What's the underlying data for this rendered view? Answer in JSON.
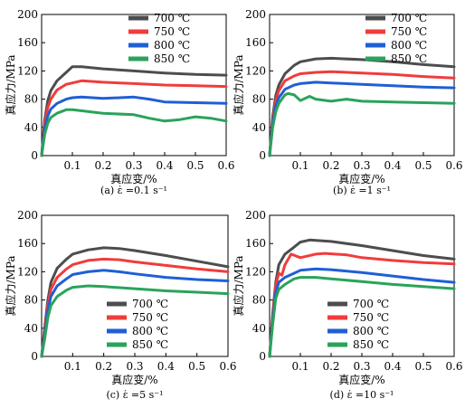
{
  "chart_data": [
    {
      "type": "line",
      "caption": "(a) ε̇ =0.1 s⁻¹",
      "xlabel": "真应变/%",
      "ylabel": "真应力/MPa",
      "xlim": [
        0,
        0.6
      ],
      "ylim": [
        0,
        200
      ],
      "x_ticks": [
        "0.1",
        "0.2",
        "0.3",
        "0.4",
        "0.5",
        "0.6"
      ],
      "y_ticks": [
        "0",
        "40",
        "80",
        "120",
        "160",
        "200"
      ],
      "legend_position": "top-right",
      "series": [
        {
          "name": "700 ℃",
          "color": "#4d4d4d",
          "x": [
            0,
            0.01,
            0.02,
            0.03,
            0.05,
            0.08,
            0.1,
            0.13,
            0.2,
            0.3,
            0.4,
            0.5,
            0.6
          ],
          "y": [
            0,
            50,
            78,
            92,
            106,
            118,
            126,
            126,
            123,
            120,
            117,
            115,
            114
          ]
        },
        {
          "name": "750 ℃",
          "color": "#f03c3c",
          "x": [
            0,
            0.01,
            0.02,
            0.03,
            0.05,
            0.08,
            0.1,
            0.13,
            0.2,
            0.3,
            0.4,
            0.5,
            0.6
          ],
          "y": [
            0,
            44,
            68,
            80,
            93,
            101,
            103,
            106,
            104,
            102,
            100,
            99,
            98
          ]
        },
        {
          "name": "800 ℃",
          "color": "#1f5fd6",
          "x": [
            0,
            0.01,
            0.02,
            0.03,
            0.05,
            0.08,
            0.1,
            0.13,
            0.2,
            0.3,
            0.35,
            0.4,
            0.5,
            0.6
          ],
          "y": [
            0,
            38,
            56,
            66,
            74,
            80,
            82,
            83,
            81,
            83,
            80,
            76,
            75,
            74
          ]
        },
        {
          "name": "850 ℃",
          "color": "#2aa35a",
          "x": [
            0,
            0.01,
            0.02,
            0.03,
            0.05,
            0.08,
            0.1,
            0.2,
            0.3,
            0.35,
            0.4,
            0.45,
            0.5,
            0.55,
            0.6
          ],
          "y": [
            0,
            30,
            46,
            54,
            60,
            65,
            65,
            60,
            58,
            53,
            49,
            51,
            55,
            53,
            49
          ]
        }
      ]
    },
    {
      "type": "line",
      "caption": "(b) ε̇ =1 s⁻¹",
      "xlabel": "真应变/%",
      "ylabel": "真应力/MPa",
      "xlim": [
        0,
        0.6
      ],
      "ylim": [
        0,
        200
      ],
      "x_ticks": [
        "0.1",
        "0.2",
        "0.3",
        "0.4",
        "0.5",
        "0.6"
      ],
      "y_ticks": [
        "0",
        "40",
        "80",
        "120",
        "160",
        "200"
      ],
      "legend_position": "top-right",
      "series": [
        {
          "name": "700 ℃",
          "color": "#4d4d4d",
          "x": [
            0,
            0.01,
            0.02,
            0.03,
            0.05,
            0.08,
            0.1,
            0.15,
            0.2,
            0.3,
            0.4,
            0.5,
            0.6
          ],
          "y": [
            0,
            55,
            85,
            100,
            116,
            128,
            133,
            137,
            138,
            136,
            133,
            129,
            126
          ]
        },
        {
          "name": "750 ℃",
          "color": "#f03c3c",
          "x": [
            0,
            0.01,
            0.02,
            0.03,
            0.05,
            0.08,
            0.1,
            0.15,
            0.2,
            0.3,
            0.4,
            0.5,
            0.6
          ],
          "y": [
            0,
            50,
            78,
            92,
            106,
            113,
            116,
            118,
            119,
            117,
            115,
            112,
            110
          ]
        },
        {
          "name": "800 ℃",
          "color": "#1f5fd6",
          "x": [
            0,
            0.01,
            0.02,
            0.03,
            0.05,
            0.08,
            0.1,
            0.15,
            0.2,
            0.3,
            0.4,
            0.5,
            0.6
          ],
          "y": [
            0,
            46,
            70,
            82,
            94,
            100,
            102,
            104,
            103,
            101,
            99,
            97,
            96
          ]
        },
        {
          "name": "850 ℃",
          "color": "#2aa35a",
          "x": [
            0,
            0.01,
            0.02,
            0.03,
            0.05,
            0.06,
            0.08,
            0.1,
            0.13,
            0.15,
            0.2,
            0.25,
            0.3,
            0.4,
            0.5,
            0.6
          ],
          "y": [
            0,
            40,
            62,
            74,
            86,
            88,
            86,
            78,
            84,
            80,
            77,
            80,
            77,
            76,
            75,
            74
          ]
        }
      ]
    },
    {
      "type": "line",
      "caption": "(c) ε̇ =5 s⁻¹",
      "xlabel": "真应变/%",
      "ylabel": "真应力/MPa",
      "xlim": [
        0,
        0.6
      ],
      "ylim": [
        0,
        200
      ],
      "x_ticks": [
        "0.1",
        "0.2",
        "0.3",
        "0.4",
        "0.5",
        "0.6"
      ],
      "y_ticks": [
        "0",
        "40",
        "80",
        "120",
        "160",
        "200"
      ],
      "legend_position": "bottom-right",
      "series": [
        {
          "name": "700 ℃",
          "color": "#4d4d4d",
          "x": [
            0,
            0.01,
            0.02,
            0.03,
            0.05,
            0.08,
            0.1,
            0.15,
            0.2,
            0.25,
            0.3,
            0.4,
            0.5,
            0.6
          ],
          "y": [
            0,
            40,
            80,
            105,
            125,
            138,
            145,
            151,
            154,
            153,
            150,
            143,
            135,
            127
          ]
        },
        {
          "name": "750 ℃",
          "color": "#f03c3c",
          "x": [
            0,
            0.01,
            0.02,
            0.03,
            0.05,
            0.08,
            0.1,
            0.15,
            0.2,
            0.25,
            0.3,
            0.4,
            0.5,
            0.6
          ],
          "y": [
            0,
            35,
            72,
            95,
            112,
            124,
            130,
            136,
            138,
            137,
            134,
            129,
            124,
            120
          ]
        },
        {
          "name": "800 ℃",
          "color": "#1f5fd6",
          "x": [
            0,
            0.01,
            0.02,
            0.03,
            0.05,
            0.08,
            0.1,
            0.15,
            0.2,
            0.25,
            0.3,
            0.4,
            0.5,
            0.6
          ],
          "y": [
            0,
            30,
            65,
            85,
            100,
            110,
            116,
            120,
            122,
            120,
            117,
            112,
            109,
            107
          ]
        },
        {
          "name": "850 ℃",
          "color": "#2aa35a",
          "x": [
            0,
            0.01,
            0.02,
            0.03,
            0.05,
            0.08,
            0.1,
            0.15,
            0.2,
            0.3,
            0.4,
            0.5,
            0.6
          ],
          "y": [
            0,
            25,
            55,
            72,
            85,
            94,
            98,
            100,
            99,
            96,
            93,
            91,
            89
          ]
        }
      ]
    },
    {
      "type": "line",
      "caption": "(d) ε̇ =10 s⁻¹",
      "xlabel": "真应变/%",
      "ylabel": "真应力/MPa",
      "xlim": [
        0,
        0.6
      ],
      "ylim": [
        0,
        200
      ],
      "x_ticks": [
        "0.1",
        "0.2",
        "0.3",
        "0.4",
        "0.5",
        "0.6"
      ],
      "y_ticks": [
        "0",
        "40",
        "80",
        "120",
        "160",
        "200"
      ],
      "legend_position": "bottom-right",
      "series": [
        {
          "name": "700 ℃",
          "color": "#4d4d4d",
          "x": [
            0,
            0.01,
            0.02,
            0.03,
            0.05,
            0.08,
            0.1,
            0.13,
            0.2,
            0.3,
            0.4,
            0.5,
            0.6
          ],
          "y": [
            0,
            60,
            105,
            130,
            145,
            155,
            162,
            165,
            163,
            157,
            150,
            143,
            138
          ]
        },
        {
          "name": "750 ℃",
          "color": "#f03c3c",
          "x": [
            0,
            0.01,
            0.02,
            0.03,
            0.04,
            0.05,
            0.07,
            0.1,
            0.15,
            0.18,
            0.25,
            0.3,
            0.4,
            0.5,
            0.6
          ],
          "y": [
            0,
            55,
            100,
            118,
            115,
            130,
            145,
            140,
            145,
            146,
            144,
            140,
            136,
            133,
            131
          ]
        },
        {
          "name": "800 ℃",
          "color": "#1f5fd6",
          "x": [
            0,
            0.01,
            0.02,
            0.03,
            0.05,
            0.08,
            0.1,
            0.15,
            0.2,
            0.3,
            0.4,
            0.5,
            0.6
          ],
          "y": [
            0,
            50,
            90,
            105,
            112,
            118,
            122,
            124,
            123,
            119,
            114,
            109,
            105
          ]
        },
        {
          "name": "850 ℃",
          "color": "#2aa35a",
          "x": [
            0,
            0.01,
            0.02,
            0.03,
            0.05,
            0.08,
            0.1,
            0.15,
            0.2,
            0.3,
            0.4,
            0.5,
            0.6
          ],
          "y": [
            0,
            45,
            82,
            95,
            102,
            110,
            112,
            112,
            110,
            106,
            102,
            99,
            96
          ]
        }
      ]
    }
  ]
}
